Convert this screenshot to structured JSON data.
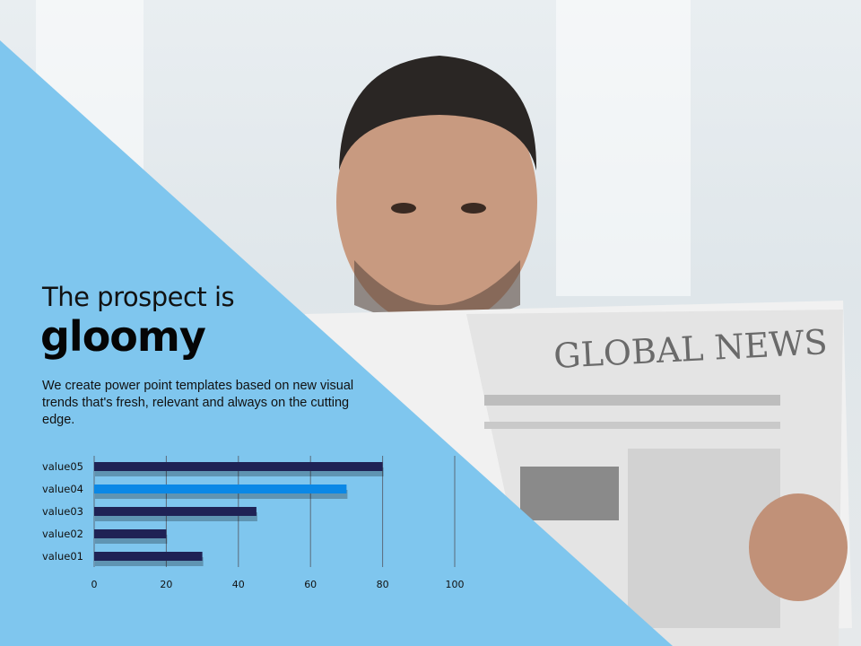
{
  "slide": {
    "title_line1": "The prospect is",
    "title_line2": "gloomy",
    "body": "We create power point templates based on new visual trends that's fresh, relevant and always on the cutting edge.",
    "newspaper_masthead": "GLOBAL NEWS"
  },
  "colors": {
    "triangle": "#7fc6ee",
    "bar": "#1f2255",
    "bar_highlight": "#0a88e6",
    "grid": "#5a6a7a"
  },
  "chart_data": {
    "type": "bar",
    "orientation": "horizontal",
    "categories": [
      "value01",
      "value02",
      "value03",
      "value04",
      "value05"
    ],
    "values": [
      30,
      20,
      45,
      70,
      80
    ],
    "highlight": "value04",
    "xlim": [
      0,
      100
    ],
    "xticks": [
      "0",
      "20",
      "40",
      "60",
      "80",
      "100"
    ],
    "grid": true,
    "title": "",
    "xlabel": "",
    "ylabel": ""
  }
}
